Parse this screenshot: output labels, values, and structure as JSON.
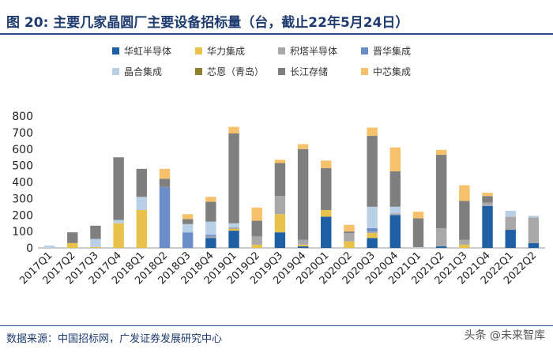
{
  "header": {
    "title": "图 20:  主要几家晶圆厂主要设备招标量（台，截止22年5月24日）"
  },
  "footer": {
    "source": "数据来源：中国招标网，广发证券发展研究中心",
    "watermark": "头条 @未来智库"
  },
  "chart_data": {
    "type": "bar",
    "stacked": true,
    "title": "主要几家晶圆厂主要设备招标量（台，截止22年5月24日）",
    "xlabel": "",
    "ylabel": "",
    "ylim": [
      0,
      800
    ],
    "yticks": [
      0,
      100,
      200,
      300,
      400,
      500,
      600,
      700,
      800
    ],
    "categories": [
      "2017Q1",
      "2017Q2",
      "2017Q3",
      "2017Q4",
      "2018Q1",
      "2018Q2",
      "2018Q3",
      "2018Q4",
      "2019Q1",
      "2019Q2",
      "2019Q3",
      "2019Q4",
      "2020Q1",
      "2020Q2",
      "2020Q3",
      "2020Q4",
      "2021Q1",
      "2021Q2",
      "2021Q3",
      "2021Q4",
      "2022Q1",
      "2022Q2"
    ],
    "series": [
      {
        "name": "华虹半导体",
        "color": "#1f5fa3",
        "values": [
          0,
          0,
          0,
          0,
          0,
          0,
          0,
          60,
          105,
          0,
          95,
          10,
          190,
          0,
          60,
          200,
          0,
          10,
          0,
          255,
          110,
          30
        ]
      },
      {
        "name": "华力集成",
        "color": "#e8c24a",
        "values": [
          0,
          30,
          5,
          150,
          230,
          0,
          0,
          0,
          10,
          20,
          110,
          10,
          40,
          40,
          30,
          0,
          0,
          0,
          20,
          0,
          0,
          0
        ]
      },
      {
        "name": "积塔半导体",
        "color": "#a8a8a8",
        "values": [
          0,
          0,
          0,
          0,
          0,
          0,
          0,
          10,
          10,
          50,
          110,
          30,
          0,
          50,
          10,
          10,
          0,
          110,
          30,
          20,
          80,
          155
        ]
      },
      {
        "name": "晋华集成",
        "color": "#6b8ec8",
        "values": [
          0,
          0,
          0,
          0,
          0,
          370,
          95,
          10,
          0,
          0,
          0,
          0,
          0,
          0,
          20,
          0,
          0,
          0,
          0,
          0,
          0,
          0
        ]
      },
      {
        "name": "晶合集成",
        "color": "#b9cfe6",
        "values": [
          15,
          0,
          50,
          20,
          80,
          0,
          50,
          80,
          25,
          0,
          0,
          0,
          0,
          0,
          130,
          40,
          5,
          0,
          0,
          0,
          35,
          10
        ]
      },
      {
        "name": "芯恩（青岛）",
        "color": "#8c7f2e",
        "values": [
          0,
          0,
          0,
          0,
          0,
          0,
          0,
          0,
          0,
          0,
          0,
          0,
          0,
          0,
          0,
          0,
          0,
          0,
          0,
          0,
          0,
          0
        ]
      },
      {
        "name": "长江存储",
        "color": "#7f7f7f",
        "values": [
          0,
          65,
          80,
          380,
          170,
          50,
          30,
          120,
          545,
          95,
          200,
          550,
          255,
          10,
          430,
          215,
          175,
          445,
          235,
          40,
          0,
          0
        ]
      },
      {
        "name": "中芯集成",
        "color": "#f7c16b",
        "values": [
          0,
          0,
          0,
          0,
          0,
          60,
          30,
          30,
          40,
          80,
          20,
          30,
          45,
          40,
          50,
          145,
          40,
          30,
          95,
          20,
          0,
          0
        ]
      }
    ]
  }
}
